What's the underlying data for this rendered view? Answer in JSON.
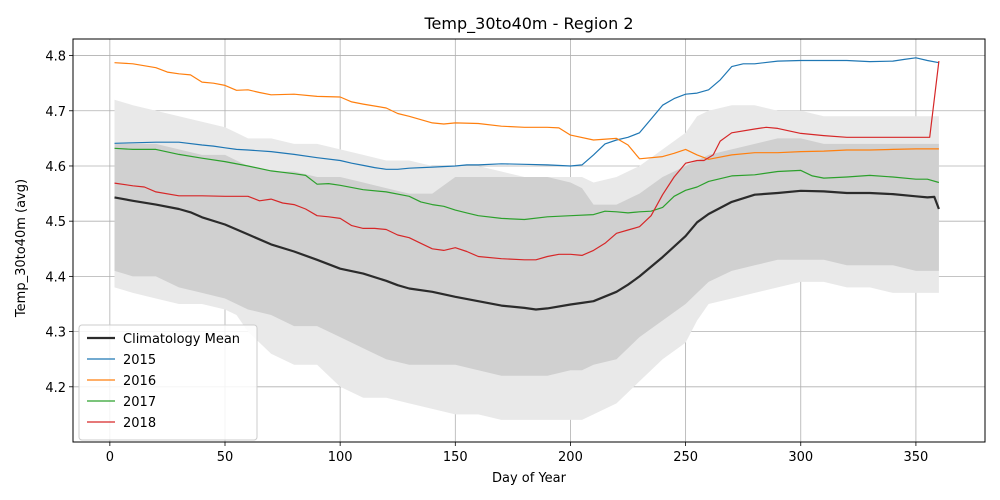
{
  "chart_data": {
    "type": "line",
    "title": "Temp_30to40m - Region 2",
    "xlabel": "Day of Year",
    "ylabel": "Temp_30to40m (avg)",
    "xlim": [
      -16,
      380
    ],
    "ylim": [
      4.1,
      4.83
    ],
    "xticks": [
      0,
      50,
      100,
      150,
      200,
      250,
      300,
      350
    ],
    "yticks": [
      4.2,
      4.3,
      4.4,
      4.5,
      4.6,
      4.7,
      4.8
    ],
    "grid": true,
    "legend_position": "lower-left",
    "bands": [
      {
        "name": "Climatology Mean ±2σ",
        "color": "#e9e9e9",
        "x": [
          2,
          10,
          20,
          30,
          40,
          50,
          55,
          60,
          70,
          80,
          90,
          100,
          110,
          120,
          130,
          140,
          150,
          160,
          170,
          180,
          190,
          200,
          205,
          210,
          220,
          230,
          240,
          250,
          255,
          260,
          270,
          280,
          290,
          300,
          310,
          320,
          330,
          340,
          350,
          360
        ],
        "upper": [
          4.72,
          4.71,
          4.7,
          4.69,
          4.68,
          4.67,
          4.66,
          4.65,
          4.65,
          4.64,
          4.64,
          4.63,
          4.62,
          4.61,
          4.61,
          4.6,
          4.6,
          4.6,
          4.59,
          4.58,
          4.58,
          4.58,
          4.58,
          4.57,
          4.58,
          4.6,
          4.63,
          4.66,
          4.69,
          4.7,
          4.71,
          4.71,
          4.7,
          4.7,
          4.69,
          4.69,
          4.69,
          4.69,
          4.69,
          4.69
        ],
        "lower": [
          4.38,
          4.37,
          4.36,
          4.35,
          4.35,
          4.34,
          4.33,
          4.3,
          4.26,
          4.24,
          4.24,
          4.2,
          4.18,
          4.18,
          4.17,
          4.16,
          4.15,
          4.15,
          4.14,
          4.14,
          4.14,
          4.14,
          4.14,
          4.15,
          4.17,
          4.21,
          4.25,
          4.28,
          4.32,
          4.35,
          4.36,
          4.37,
          4.38,
          4.39,
          4.39,
          4.38,
          4.38,
          4.37,
          4.37,
          4.37
        ]
      },
      {
        "name": "Climatology Mean ±1σ",
        "color": "#d0d0d0",
        "x": [
          2,
          10,
          20,
          30,
          40,
          50,
          55,
          60,
          70,
          80,
          90,
          100,
          110,
          120,
          130,
          140,
          150,
          160,
          170,
          180,
          190,
          200,
          205,
          210,
          220,
          230,
          240,
          250,
          255,
          260,
          270,
          280,
          290,
          300,
          310,
          320,
          330,
          340,
          350,
          360
        ],
        "upper": [
          4.64,
          4.64,
          4.64,
          4.63,
          4.62,
          4.62,
          4.61,
          4.6,
          4.59,
          4.59,
          4.58,
          4.58,
          4.57,
          4.56,
          4.55,
          4.55,
          4.58,
          4.58,
          4.58,
          4.58,
          4.58,
          4.57,
          4.56,
          4.53,
          4.53,
          4.55,
          4.58,
          4.6,
          4.61,
          4.62,
          4.63,
          4.64,
          4.65,
          4.65,
          4.64,
          4.64,
          4.64,
          4.64,
          4.64,
          4.64
        ],
        "lower": [
          4.41,
          4.4,
          4.4,
          4.38,
          4.37,
          4.36,
          4.35,
          4.34,
          4.33,
          4.31,
          4.31,
          4.29,
          4.27,
          4.25,
          4.24,
          4.24,
          4.24,
          4.23,
          4.22,
          4.22,
          4.22,
          4.23,
          4.23,
          4.24,
          4.25,
          4.29,
          4.32,
          4.35,
          4.37,
          4.39,
          4.41,
          4.42,
          4.43,
          4.43,
          4.43,
          4.42,
          4.42,
          4.42,
          4.41,
          4.41
        ]
      }
    ],
    "series": [
      {
        "name": "Climatology Mean",
        "color": "#2b2b2b",
        "width": 2.2,
        "x": [
          2,
          10,
          20,
          30,
          35,
          40,
          50,
          60,
          70,
          80,
          90,
          100,
          110,
          120,
          125,
          130,
          140,
          150,
          160,
          170,
          180,
          185,
          190,
          200,
          205,
          210,
          220,
          225,
          230,
          240,
          250,
          255,
          260,
          270,
          280,
          290,
          300,
          310,
          320,
          330,
          340,
          350,
          355,
          358,
          360
        ],
        "y": [
          4.543,
          4.537,
          4.53,
          4.522,
          4.516,
          4.507,
          4.494,
          4.476,
          4.458,
          4.445,
          4.43,
          4.414,
          4.405,
          4.392,
          4.384,
          4.378,
          4.372,
          4.363,
          4.355,
          4.347,
          4.343,
          4.34,
          4.342,
          4.349,
          4.352,
          4.355,
          4.372,
          4.385,
          4.4,
          4.435,
          4.473,
          4.498,
          4.513,
          4.535,
          4.548,
          4.551,
          4.555,
          4.554,
          4.551,
          4.551,
          4.549,
          4.545,
          4.543,
          4.544,
          4.522
        ]
      },
      {
        "name": "2015",
        "color": "#1f77b4",
        "width": 1.2,
        "x": [
          2,
          10,
          20,
          30,
          40,
          45,
          50,
          55,
          60,
          70,
          80,
          90,
          100,
          105,
          110,
          115,
          120,
          125,
          130,
          140,
          150,
          155,
          160,
          170,
          180,
          190,
          200,
          205,
          210,
          215,
          220,
          225,
          230,
          235,
          240,
          245,
          250,
          255,
          260,
          265,
          270,
          275,
          280,
          290,
          300,
          310,
          320,
          330,
          340,
          345,
          350,
          355,
          360
        ],
        "y": [
          4.641,
          4.642,
          4.643,
          4.643,
          4.638,
          4.636,
          4.633,
          4.63,
          4.629,
          4.626,
          4.621,
          4.615,
          4.61,
          4.605,
          4.601,
          4.597,
          4.594,
          4.594,
          4.596,
          4.598,
          4.6,
          4.602,
          4.602,
          4.604,
          4.603,
          4.602,
          4.6,
          4.602,
          4.62,
          4.64,
          4.647,
          4.652,
          4.66,
          4.685,
          4.71,
          4.722,
          4.73,
          4.732,
          4.738,
          4.756,
          4.78,
          4.785,
          4.785,
          4.79,
          4.791,
          4.791,
          4.791,
          4.789,
          4.79,
          4.793,
          4.796,
          4.791,
          4.787
        ]
      },
      {
        "name": "2016",
        "color": "#ff7f0e",
        "width": 1.2,
        "x": [
          2,
          10,
          20,
          25,
          30,
          35,
          40,
          45,
          50,
          55,
          60,
          65,
          70,
          80,
          90,
          100,
          105,
          110,
          120,
          125,
          130,
          140,
          145,
          150,
          160,
          170,
          180,
          190,
          195,
          200,
          210,
          220,
          225,
          230,
          240,
          245,
          250,
          255,
          260,
          270,
          280,
          290,
          300,
          310,
          320,
          330,
          340,
          350,
          360
        ],
        "y": [
          4.787,
          4.785,
          4.778,
          4.77,
          4.767,
          4.765,
          4.752,
          4.75,
          4.746,
          4.737,
          4.738,
          4.733,
          4.729,
          4.73,
          4.726,
          4.725,
          4.716,
          4.712,
          4.705,
          4.695,
          4.69,
          4.678,
          4.676,
          4.678,
          4.677,
          4.672,
          4.67,
          4.67,
          4.669,
          4.656,
          4.647,
          4.65,
          4.638,
          4.613,
          4.617,
          4.623,
          4.63,
          4.62,
          4.612,
          4.62,
          4.624,
          4.624,
          4.626,
          4.627,
          4.629,
          4.629,
          4.63,
          4.631,
          4.631
        ]
      },
      {
        "name": "2017",
        "color": "#2ca02c",
        "width": 1.2,
        "x": [
          2,
          10,
          20,
          30,
          40,
          50,
          60,
          70,
          80,
          85,
          90,
          95,
          100,
          110,
          120,
          130,
          135,
          140,
          145,
          150,
          155,
          160,
          170,
          180,
          190,
          200,
          210,
          215,
          220,
          225,
          230,
          235,
          240,
          245,
          250,
          255,
          260,
          270,
          280,
          290,
          300,
          305,
          310,
          320,
          330,
          340,
          350,
          355,
          360
        ],
        "y": [
          4.632,
          4.63,
          4.63,
          4.621,
          4.614,
          4.608,
          4.6,
          4.591,
          4.586,
          4.583,
          4.567,
          4.568,
          4.565,
          4.557,
          4.553,
          4.545,
          4.535,
          4.53,
          4.527,
          4.52,
          4.515,
          4.51,
          4.505,
          4.503,
          4.508,
          4.51,
          4.512,
          4.518,
          4.517,
          4.515,
          4.517,
          4.518,
          4.525,
          4.545,
          4.556,
          4.562,
          4.572,
          4.582,
          4.584,
          4.59,
          4.592,
          4.582,
          4.578,
          4.58,
          4.583,
          4.58,
          4.576,
          4.576,
          4.57
        ]
      },
      {
        "name": "2018",
        "color": "#d62728",
        "width": 1.2,
        "x": [
          2,
          10,
          15,
          20,
          30,
          40,
          50,
          60,
          65,
          70,
          75,
          80,
          85,
          90,
          95,
          100,
          105,
          110,
          115,
          120,
          125,
          130,
          135,
          140,
          145,
          150,
          155,
          160,
          170,
          180,
          185,
          190,
          195,
          200,
          205,
          210,
          215,
          220,
          225,
          230,
          235,
          240,
          245,
          250,
          255,
          258,
          262,
          265,
          270,
          280,
          285,
          290,
          300,
          310,
          320,
          330,
          340,
          350,
          356,
          360
        ],
        "y": [
          4.569,
          4.564,
          4.562,
          4.553,
          4.546,
          4.546,
          4.545,
          4.545,
          4.537,
          4.54,
          4.533,
          4.53,
          4.522,
          4.51,
          4.508,
          4.505,
          4.492,
          4.487,
          4.487,
          4.485,
          4.475,
          4.47,
          4.46,
          4.45,
          4.447,
          4.452,
          4.445,
          4.436,
          4.432,
          4.43,
          4.43,
          4.436,
          4.44,
          4.44,
          4.438,
          4.447,
          4.46,
          4.478,
          4.484,
          4.49,
          4.51,
          4.548,
          4.58,
          4.605,
          4.61,
          4.61,
          4.62,
          4.645,
          4.66,
          4.667,
          4.67,
          4.668,
          4.659,
          4.655,
          4.652,
          4.652,
          4.652,
          4.652,
          4.652,
          4.79
        ]
      }
    ]
  }
}
